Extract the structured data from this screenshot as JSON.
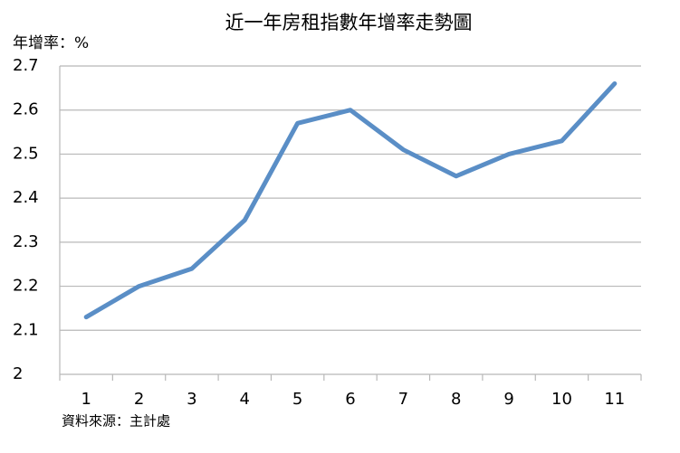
{
  "chart_data": {
    "type": "line",
    "title": "近一年房租指數年增率走勢圖",
    "y_label": "年增率：%",
    "source": "資料來源：主計處",
    "categories": [
      "1",
      "2",
      "3",
      "4",
      "5",
      "6",
      "7",
      "8",
      "9",
      "10",
      "11"
    ],
    "values": [
      2.13,
      2.2,
      2.24,
      2.35,
      2.57,
      2.6,
      2.51,
      2.45,
      2.5,
      2.53,
      2.66
    ],
    "color": "#5a8ec6",
    "ylim": [
      2,
      2.7
    ],
    "yticks": [
      2,
      2.1,
      2.2,
      2.3,
      2.4,
      2.5,
      2.6,
      2.7
    ],
    "grid": true
  }
}
